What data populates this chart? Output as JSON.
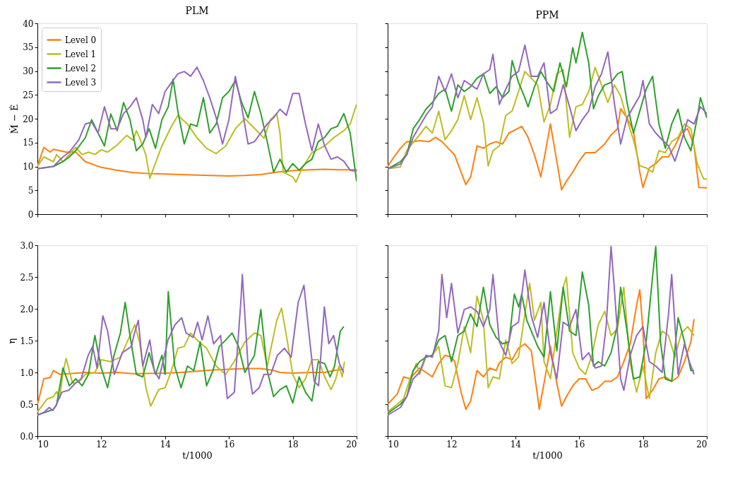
{
  "chart_data": [
    {
      "type": "line",
      "title": "PLM",
      "ylabel": "Ṁ − Ė",
      "xlim": [
        10,
        20
      ],
      "xticks": [
        10,
        12,
        14,
        16,
        18,
        20
      ],
      "ylim": [
        0,
        40
      ],
      "yticks": [
        0,
        5,
        10,
        15,
        20,
        25,
        30,
        35,
        40
      ],
      "tick_labels": "y",
      "legend": "top left",
      "series": [
        {
          "name": "Level 0",
          "color": "#ff7f0e",
          "x": [
            10,
            10.2,
            10.4,
            10.5,
            10.9,
            11.2,
            11.5,
            12,
            12.5,
            13,
            13.5,
            14,
            15,
            16,
            16.5,
            17,
            17.5,
            18,
            18.5,
            19,
            19.5,
            20
          ],
          "values": [
            10,
            14,
            13,
            13.6,
            13,
            13,
            11,
            9.8,
            9.2,
            8.7,
            8.5,
            8.4,
            8.2,
            8,
            8.1,
            8.3,
            8.8,
            9.1,
            9.3,
            9.4,
            9.3,
            9.3
          ]
        },
        {
          "name": "Level 1",
          "color": "#bcbd22",
          "x": [
            10,
            10.2,
            10.5,
            10.6,
            10.8,
            11,
            11.2,
            11.4,
            11.6,
            11.8,
            12,
            12.2,
            12.5,
            12.8,
            13,
            13.1,
            13.2,
            13.4,
            13.52,
            13.9,
            14.2,
            14.4,
            14.7,
            15,
            15.3,
            15.6,
            15.9,
            16.2,
            16.5,
            16.8,
            17.1,
            17.3,
            17.5,
            17.6,
            17.7,
            18,
            18.1,
            18.3,
            18.6,
            19,
            19.3,
            19.6,
            19.8,
            20
          ],
          "values": [
            10,
            12,
            11,
            12.5,
            11,
            12.5,
            14,
            12.5,
            13,
            12.5,
            13.5,
            13,
            14.5,
            16.5,
            15.5,
            17.5,
            16,
            12.4,
            7.5,
            14.3,
            18.4,
            20.7,
            18.9,
            16,
            13.8,
            12.7,
            14.3,
            17.9,
            20,
            18,
            15.9,
            19.8,
            21.1,
            17,
            8.8,
            7.8,
            6.7,
            9.7,
            12.9,
            14.3,
            16.1,
            17.5,
            18.9,
            23
          ]
        },
        {
          "name": "Level 2",
          "color": "#2ca02c",
          "x": [
            10,
            10.5,
            10.8,
            11,
            11.2,
            11.5,
            11.7,
            11.9,
            12.1,
            12.3,
            12.5,
            12.7,
            12.9,
            13.1,
            13.3,
            13.5,
            13.7,
            13.9,
            14.1,
            14.25,
            14.4,
            14.6,
            14.8,
            15,
            15.2,
            15.4,
            15.6,
            15.8,
            16,
            16.2,
            16.4,
            16.6,
            16.8,
            17,
            17.2,
            17.4,
            17.6,
            17.8,
            18,
            18.2,
            18.4,
            18.6,
            18.8,
            19,
            19.2,
            19.4,
            19.6,
            19.8,
            20
          ],
          "values": [
            9.5,
            10,
            11,
            12,
            13.3,
            16,
            19.8,
            17,
            14.3,
            21,
            17.5,
            23.4,
            19.8,
            13.3,
            14.7,
            17.9,
            13.8,
            19.8,
            22.5,
            28.3,
            21.6,
            14.7,
            18.9,
            18.4,
            24.4,
            17,
            18.9,
            24.4,
            25.7,
            28,
            23.4,
            20.2,
            25.7,
            21.1,
            15.2,
            8.8,
            11.5,
            8.8,
            10.6,
            9.2,
            10.6,
            11.5,
            15.2,
            16.1,
            17.9,
            18.4,
            21.1,
            17,
            6.9
          ]
        },
        {
          "name": "Level 3",
          "color": "#9467bd",
          "x": [
            10,
            10.5,
            10.8,
            11,
            11.3,
            11.5,
            11.7,
            11.9,
            12.1,
            12.3,
            12.5,
            12.7,
            12.9,
            13.1,
            13.3,
            13.4,
            13.6,
            13.8,
            14,
            14.2,
            14.4,
            14.6,
            14.8,
            15,
            15.2,
            15.4,
            15.6,
            15.8,
            16,
            16.2,
            16.4,
            16.6,
            16.8,
            17,
            17.2,
            17.4,
            17.6,
            17.8,
            18,
            18.2,
            18.4,
            18.6,
            18.8,
            19,
            19.2,
            19.4,
            19.6,
            19.8,
            20
          ],
          "values": [
            9.5,
            10,
            12,
            13,
            15.6,
            18.9,
            19.3,
            17,
            22.5,
            17.9,
            17.9,
            21.1,
            22.5,
            24.4,
            19.8,
            16.1,
            23,
            21.1,
            25.7,
            27.6,
            29.4,
            29.9,
            28.9,
            30.8,
            28,
            24.4,
            20.2,
            14.7,
            19.8,
            28.9,
            22.5,
            14.7,
            15.2,
            17,
            18.9,
            20.2,
            22,
            20.7,
            25.3,
            25.3,
            18.9,
            13.3,
            18.9,
            14.3,
            11.5,
            12,
            11.1,
            9.2,
            9
          ]
        }
      ]
    },
    {
      "type": "line",
      "title": "PPM",
      "xlim": [
        10,
        20
      ],
      "xticks": [
        10,
        12,
        14,
        16,
        18,
        20
      ],
      "ylim": [
        0,
        40
      ],
      "yticks": [
        0,
        5,
        10,
        15,
        20,
        25,
        30,
        35,
        40
      ],
      "tick_labels": false,
      "series": [
        {
          "color": "#ff7f0e",
          "x": [
            10,
            10.2,
            10.4,
            10.6,
            10.8,
            11,
            11.3,
            11.5,
            11.7,
            11.9,
            12.1,
            12.3,
            12.45,
            12.6,
            12.8,
            13,
            13.2,
            13.4,
            13.6,
            13.8,
            14,
            14.2,
            14.4,
            14.6,
            14.8,
            15,
            15.1,
            15.3,
            15.45,
            15.6,
            15.8,
            16,
            16.2,
            16.5,
            16.8,
            17,
            17.2,
            17.3,
            17.5,
            17.7,
            17.9,
            18,
            18.2,
            18.4,
            18.6,
            18.8,
            19,
            19.2,
            19.4,
            19.6,
            19.75,
            20
          ],
          "values": [
            10,
            12,
            13.8,
            15.2,
            15.2,
            15.4,
            15.2,
            16.1,
            15.2,
            13.8,
            12.4,
            8.8,
            6.2,
            7.8,
            14.3,
            13.8,
            14.7,
            15.2,
            14.7,
            17,
            17.7,
            18.4,
            16.1,
            12.4,
            7.8,
            15.2,
            18.9,
            11.1,
            5.1,
            6.9,
            8.8,
            11.1,
            12.9,
            12.9,
            14.7,
            16.6,
            17.9,
            22.1,
            20.2,
            17.5,
            8.8,
            5.6,
            9.7,
            10.6,
            12,
            12,
            14.3,
            17,
            17.9,
            14.3,
            5.6,
            5.5
          ]
        },
        {
          "color": "#bcbd22",
          "x": [
            10,
            10.4,
            10.6,
            10.8,
            11,
            11.2,
            11.4,
            11.6,
            11.8,
            12,
            12.2,
            12.4,
            12.6,
            12.8,
            13,
            13.15,
            13.3,
            13.5,
            13.7,
            13.9,
            14.1,
            14.3,
            14.5,
            14.7,
            14.9,
            15.1,
            15.3,
            15.5,
            15.7,
            15.9,
            16.1,
            16.3,
            16.5,
            16.7,
            16.9,
            17.1,
            17.3,
            17.5,
            17.7,
            17.9,
            18.1,
            18.3,
            18.5,
            18.7,
            18.9,
            19.1,
            19.3,
            19.5,
            19.7,
            19.9,
            20
          ],
          "values": [
            9.5,
            9.9,
            13.3,
            15,
            16.6,
            18.4,
            17,
            21.6,
            15.6,
            17.5,
            19.8,
            24.8,
            19.8,
            24.4,
            19.3,
            10.1,
            13.3,
            14.3,
            20.7,
            21.6,
            25.7,
            29.9,
            28.5,
            27.1,
            19.3,
            23,
            29.4,
            30.3,
            16.1,
            22.5,
            23,
            25.7,
            30.8,
            27.1,
            23.4,
            27.1,
            24.8,
            19.8,
            15.6,
            10.1,
            9.7,
            8.8,
            13.3,
            12.9,
            15.2,
            16.1,
            18.9,
            17.9,
            10.6,
            7.4,
            7.3
          ]
        },
        {
          "color": "#2ca02c",
          "x": [
            10,
            10.4,
            10.6,
            10.8,
            11,
            11.2,
            11.4,
            11.6,
            11.8,
            12,
            12.2,
            12.4,
            12.6,
            12.8,
            13,
            13.2,
            13.4,
            13.6,
            13.8,
            13.9,
            14.1,
            14.3,
            14.4,
            14.6,
            14.8,
            15,
            15.2,
            15.4,
            15.6,
            15.8,
            15.9,
            16.1,
            16.3,
            16.45,
            16.6,
            16.8,
            17,
            17.2,
            17.35,
            17.5,
            17.7,
            17.9,
            18.1,
            18.3,
            18.5,
            18.7,
            18.9,
            19.1,
            19.3,
            19.5,
            19.7,
            19.8,
            20
          ],
          "values": [
            9.5,
            11,
            12.5,
            17.9,
            19.8,
            22,
            23.4,
            25.3,
            26.2,
            21.6,
            27.1,
            25.7,
            26.7,
            28.5,
            29.4,
            25.3,
            26.7,
            24.4,
            25.7,
            32.2,
            27.6,
            24.4,
            22.5,
            26.7,
            29.9,
            27.6,
            25.7,
            31.7,
            26.7,
            34.9,
            31.7,
            38.1,
            31.7,
            22.1,
            24.8,
            27.1,
            27.6,
            29.4,
            29.9,
            23.4,
            17,
            21.6,
            26.2,
            28.9,
            18.9,
            13.8,
            18.9,
            22,
            16.1,
            13.3,
            20.2,
            24.4,
            20.2
          ]
        },
        {
          "color": "#9467bd",
          "x": [
            10,
            10.4,
            10.6,
            10.8,
            11,
            11.2,
            11.4,
            11.6,
            11.8,
            12,
            12.2,
            12.4,
            12.6,
            12.8,
            13,
            13.2,
            13.3,
            13.5,
            13.7,
            13.9,
            14.1,
            14.3,
            14.5,
            14.7,
            14.9,
            15.1,
            15.3,
            15.5,
            15.7,
            15.9,
            16.1,
            16.3,
            16.5,
            16.7,
            16.9,
            17.1,
            17.3,
            17.5,
            17.7,
            17.9,
            18,
            18.2,
            18.4,
            18.6,
            18.8,
            19,
            19.2,
            19.4,
            19.6,
            19.8,
            20
          ],
          "values": [
            9.5,
            10.5,
            12.5,
            16.1,
            18.4,
            20.7,
            22.5,
            28.9,
            25.7,
            29.4,
            24.4,
            28,
            27.1,
            26.2,
            29.4,
            30.3,
            33.5,
            23,
            26.2,
            28.9,
            29.9,
            35.4,
            28.9,
            28.9,
            31.7,
            21.1,
            22,
            27.1,
            22.5,
            17.5,
            19.8,
            21.6,
            26.7,
            29.4,
            34,
            23.4,
            14.7,
            20.2,
            22.5,
            24.8,
            28,
            18.9,
            17,
            15.6,
            14.3,
            11.1,
            15.2,
            19.8,
            18.9,
            22.5,
            21.1
          ]
        }
      ]
    },
    {
      "type": "line",
      "xlabel": "t/1000",
      "ylabel": "η",
      "xlim": [
        10,
        20
      ],
      "xticks": [
        10,
        12,
        14,
        16,
        18,
        20
      ],
      "ylim": [
        0,
        3
      ],
      "yticks": [
        {
          "value": 0,
          "label": "0.0"
        },
        0.5,
        {
          "value": 1,
          "label": "1.0"
        },
        1.5,
        {
          "value": 2,
          "label": "2.0"
        },
        2.5,
        {
          "value": 3,
          "label": "3.0"
        }
      ],
      "series": [
        {
          "color": "#ff7f0e",
          "x": [
            10,
            10.2,
            10.4,
            10.5,
            10.7,
            11,
            11.5,
            12,
            12.5,
            13,
            14,
            14.5,
            15,
            15.5,
            16,
            16.5,
            17,
            17.4,
            17.6,
            18,
            18.5,
            19,
            19.3,
            19.6
          ],
          "values": [
            0.49,
            0.9,
            0.92,
            1.03,
            0.97,
            0.98,
            1,
            0.99,
            1,
            0.98,
            0.99,
            1,
            1.02,
            1.04,
            1.05,
            1.06,
            1.06,
            1.03,
            1,
            0.99,
            1,
            1,
            1.03,
            1.05
          ]
        },
        {
          "color": "#bcbd22",
          "x": [
            10,
            10.3,
            10.5,
            10.6,
            10.7,
            10.8,
            10.9,
            11.1,
            11.3,
            11.5,
            11.8,
            12,
            12.3,
            12.6,
            12.9,
            13.05,
            13.2,
            13.4,
            13.55,
            13.8,
            14,
            14.2,
            14.4,
            14.6,
            14.8,
            15,
            15.3,
            15.6,
            15.9,
            16.2,
            16.5,
            16.8,
            17,
            17.2,
            17.5,
            17.65,
            17.8,
            18,
            18.2,
            18.4,
            18.6,
            18.8,
            19,
            19.2,
            19.35,
            19.45,
            19.55,
            19.62
          ],
          "values": [
            0.38,
            0.58,
            0.62,
            0.7,
            0.6,
            1.0,
            1.22,
            0.83,
            0.85,
            0.97,
            1.0,
            1.2,
            1.17,
            1.24,
            1.58,
            1.75,
            1.48,
            0.76,
            0.47,
            0.73,
            0.76,
            1.03,
            1.38,
            1.41,
            1.62,
            1.51,
            1.38,
            1.1,
            0.97,
            1.2,
            1.48,
            1.62,
            1.58,
            1.1,
            1.82,
            2.01,
            1.58,
            0.97,
            0.76,
            0.9,
            1.2,
            1.2,
            0.93,
            0.73,
            0.9,
            1.1,
            0.93,
            1.17
          ]
        },
        {
          "color": "#2ca02c",
          "x": [
            10,
            10.5,
            10.6,
            10.8,
            11,
            11.2,
            11.4,
            11.6,
            11.8,
            12,
            12.2,
            12.4,
            12.6,
            12.75,
            12.9,
            13.1,
            13.3,
            13.5,
            13.7,
            13.9,
            14,
            14.1,
            14.3,
            14.5,
            14.7,
            14.9,
            15.1,
            15.3,
            15.5,
            15.7,
            15.9,
            16.1,
            16.3,
            16.5,
            16.8,
            17,
            17.2,
            17.4,
            17.6,
            17.8,
            18,
            18.2,
            18.4,
            18.6,
            18.8,
            19,
            19.17,
            19.31,
            19.49,
            19.6
          ],
          "values": [
            0.33,
            0.42,
            0.49,
            1.07,
            0.79,
            0.9,
            0.79,
            0.97,
            1.58,
            1.07,
            0.76,
            1.27,
            1.62,
            2.1,
            1.58,
            0.97,
            0.93,
            1.31,
            0.97,
            1.27,
            0.97,
            2.27,
            1.1,
            0.76,
            1.1,
            1.03,
            1.48,
            0.79,
            1.03,
            1.41,
            1.51,
            1.62,
            1.41,
            1.0,
            1.27,
            1.99,
            1.03,
            0.62,
            0.73,
            0.79,
            0.52,
            0.93,
            0.69,
            0.55,
            1.17,
            1.14,
            0.93,
            1.1,
            1.65,
            1.72
          ]
        },
        {
          "color": "#9467bd",
          "x": [
            10,
            10.2,
            10.37,
            10.48,
            10.59,
            10.77,
            10.98,
            11.19,
            11.37,
            11.59,
            11.73,
            11.87,
            12.05,
            12.2,
            12.41,
            12.66,
            12.95,
            13.02,
            13.16,
            13.3,
            13.52,
            13.66,
            13.81,
            14.09,
            14.31,
            14.52,
            14.66,
            14.88,
            15.02,
            15.16,
            15.34,
            15.52,
            15.74,
            15.95,
            16.17,
            16.38,
            16.42,
            16.6,
            16.74,
            16.95,
            17.1,
            17.31,
            17.52,
            17.74,
            17.95,
            18.17,
            18.35,
            18.45,
            18.67,
            18.81,
            18.99,
            19.13,
            19.28,
            19.46,
            19.6
          ],
          "values": [
            0.33,
            0.37,
            0.45,
            0.4,
            0.49,
            0.69,
            0.72,
            0.83,
            0.9,
            1.27,
            1.41,
            1.07,
            1.89,
            1.65,
            0.97,
            1.31,
            1.41,
            1.58,
            1.82,
            1.1,
            1.51,
            1.03,
            0.9,
            1.51,
            1.75,
            1.86,
            1.62,
            1.55,
            1.79,
            1.51,
            1.89,
            1.45,
            1.58,
            0.59,
            0.69,
            2.16,
            2.54,
            1.1,
            0.66,
            0.76,
            0.97,
            0.97,
            1.27,
            1.38,
            1.24,
            2.1,
            2.37,
            1.89,
            0.86,
            0.79,
            2.03,
            1.45,
            1.58,
            1.14,
            1.0
          ]
        }
      ]
    },
    {
      "type": "line",
      "xlabel": "t/1000",
      "xlim": [
        10,
        20
      ],
      "xticks": [
        10,
        12,
        14,
        16,
        18,
        20
      ],
      "ylim": [
        0,
        3
      ],
      "yticks": [
        0,
        0.5,
        1,
        1.5,
        2,
        2.5,
        3
      ],
      "tick_labels": "x",
      "series": [
        {
          "color": "#ff7f0e",
          "x": [
            10,
            10.3,
            10.5,
            10.7,
            11,
            11.2,
            11.4,
            11.6,
            11.8,
            12,
            12.1,
            12.3,
            12.45,
            12.6,
            12.8,
            13,
            13.2,
            13.4,
            13.5,
            13.7,
            13.9,
            14.1,
            14.3,
            14.5,
            14.7,
            14.75,
            14.9,
            15.1,
            15.3,
            15.45,
            15.6,
            15.8,
            16,
            16.2,
            16.4,
            16.6,
            16.8,
            17,
            17.2,
            17.4,
            17.6,
            17.8,
            17.9,
            18,
            18.1,
            18.3,
            18.5,
            18.7,
            18.9,
            19.1,
            19.3,
            19.5,
            19.6
          ],
          "values": [
            0.5,
            0.66,
            0.93,
            0.9,
            1.07,
            1.0,
            0.93,
            1.14,
            1.27,
            1.24,
            1.17,
            0.69,
            0.42,
            0.55,
            1.03,
            0.93,
            1.07,
            1.03,
            1.15,
            1.24,
            1.2,
            1.38,
            1.45,
            1.34,
            0.62,
            0.42,
            0.83,
            1.41,
            0.83,
            0.47,
            0.62,
            0.79,
            0.9,
            0.9,
            0.72,
            0.76,
            0.86,
            0.86,
            0.93,
            1.17,
            1.45,
            2.06,
            2.3,
            1.65,
            0.59,
            0.72,
            0.9,
            0.93,
            0.86,
            0.93,
            1.17,
            1.48,
            1.84
          ]
        },
        {
          "color": "#bcbd22",
          "x": [
            10,
            10.3,
            10.5,
            10.7,
            10.9,
            11,
            11.2,
            11.4,
            11.6,
            11.8,
            12,
            12.2,
            12.4,
            12.6,
            12.8,
            13,
            13.15,
            13.3,
            13.5,
            13.7,
            13.9,
            14.1,
            14.3,
            14.45,
            14.6,
            14.8,
            14.9,
            15.1,
            15.3,
            15.5,
            15.6,
            15.8,
            16,
            16.2,
            16.4,
            16.6,
            16.8,
            17,
            17.2,
            17.4,
            17.6,
            17.8,
            18,
            18.2,
            18.4,
            18.6,
            18.8,
            19,
            19.2,
            19.4,
            19.6
          ],
          "values": [
            0.38,
            0.5,
            0.59,
            0.9,
            1.14,
            0.97,
            1.24,
            1.27,
            1.41,
            0.79,
            0.76,
            1.14,
            1.72,
            1.31,
            2.2,
            1.82,
            0.76,
            0.93,
            0.9,
            1.51,
            1.14,
            1.24,
            1.92,
            2.4,
            1.82,
            2.1,
            1.17,
            0.9,
            1.65,
            2.34,
            2.5,
            1.31,
            1.07,
            0.97,
            1.27,
            1.75,
            1.96,
            1.58,
            1.68,
            2.34,
            1.14,
            0.69,
            1.1,
            0.59,
            1.31,
            1.65,
            1.58,
            1.24,
            1.62,
            1.72,
            1.58
          ]
        },
        {
          "color": "#2ca02c",
          "x": [
            10,
            10.4,
            10.6,
            10.8,
            11,
            11.2,
            11.4,
            11.6,
            11.8,
            12,
            12.2,
            12.4,
            12.6,
            12.8,
            13,
            13.2,
            13.4,
            13.6,
            13.8,
            13.97,
            14.11,
            14.2,
            14.36,
            14.7,
            14.9,
            15.1,
            15.3,
            15.5,
            15.7,
            15.9,
            16.1,
            16.3,
            16.45,
            16.6,
            16.8,
            17,
            17.2,
            17.3,
            17.5,
            17.7,
            17.9,
            18.1,
            18.3,
            18.4,
            18.55,
            18.7,
            18.9,
            19.1,
            19.25,
            19.4,
            19.5,
            19.6
          ],
          "values": [
            0.36,
            0.5,
            0.62,
            1.03,
            1.17,
            1.24,
            1.27,
            1.51,
            1.58,
            1.17,
            1.58,
            1.65,
            1.92,
            1.72,
            2.34,
            1.75,
            1.55,
            1.45,
            1.48,
            2.23,
            2.03,
            2.23,
            1.82,
            1.41,
            1.24,
            2.27,
            1.34,
            2.34,
            1.65,
            1.58,
            2.58,
            2.06,
            1.1,
            1.17,
            1.1,
            1.31,
            1.75,
            2.34,
            1.65,
            0.9,
            0.93,
            1.48,
            2.5,
            2.98,
            1.48,
            0.9,
            0.86,
            1.86,
            1.58,
            1.27,
            1.03,
            1.03
          ]
        },
        {
          "color": "#9467bd",
          "x": [
            10,
            10.4,
            10.6,
            10.8,
            11,
            11.2,
            11.4,
            11.6,
            11.7,
            11.85,
            12,
            12.2,
            12.4,
            12.6,
            12.8,
            13,
            13.2,
            13.3,
            13.5,
            13.7,
            13.9,
            14.1,
            14.3,
            14.5,
            14.7,
            14.9,
            15.1,
            15.3,
            15.5,
            15.7,
            15.9,
            16.1,
            16.3,
            16.5,
            16.7,
            16.85,
            17,
            17.1,
            17.3,
            17.4,
            17.6,
            17.8,
            18,
            18.2,
            18.4,
            18.6,
            18.8,
            18.9,
            19.1,
            19.3,
            19.45,
            19.6
          ],
          "values": [
            0.33,
            0.45,
            0.62,
            0.9,
            1.0,
            1.27,
            1.24,
            1.65,
            2.54,
            1.86,
            2.4,
            1.62,
            1.99,
            2.03,
            1.96,
            1.72,
            1.99,
            2.54,
            1.48,
            1.27,
            1.72,
            1.79,
            2.61,
            1.89,
            1.55,
            2.1,
            1.31,
            0.9,
            1.79,
            1.72,
            1.99,
            1.2,
            1.31,
            1.07,
            1.1,
            1.75,
            2.98,
            2.34,
            0.9,
            0.72,
            1.27,
            1.58,
            1.72,
            1.17,
            1.1,
            1.0,
            1.92,
            2.54,
            0.97,
            1.45,
            1.17,
            0.97
          ]
        }
      ]
    }
  ]
}
